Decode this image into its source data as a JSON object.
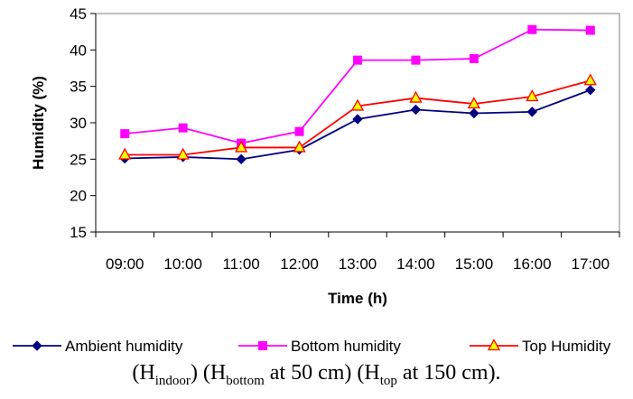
{
  "chart_data": {
    "type": "line",
    "categories": [
      "09:00",
      "10:00",
      "11:00",
      "12:00",
      "13:00",
      "14:00",
      "15:00",
      "16:00",
      "17:00"
    ],
    "xlabel": "Time (h)",
    "ylabel": "Humidity (%)",
    "ylim": [
      15,
      45
    ],
    "yticks": [
      15,
      20,
      25,
      30,
      35,
      40,
      45
    ],
    "grid": false,
    "legend_position": "bottom",
    "series": [
      {
        "name": "Ambient humidity",
        "color": "#000080",
        "marker": "diamond",
        "values": [
          25.1,
          25.3,
          25.0,
          26.3,
          30.5,
          31.8,
          31.3,
          31.5,
          34.5
        ]
      },
      {
        "name": "Bottom humidity",
        "color": "#FF00FF",
        "marker": "square",
        "values": [
          28.5,
          29.3,
          27.2,
          28.8,
          38.6,
          38.6,
          38.8,
          42.8,
          42.7
        ]
      },
      {
        "name": "Top Humidity",
        "color": "#FF0000",
        "marker_fill": "#FFFF00",
        "marker": "triangle",
        "values": [
          25.6,
          25.6,
          26.6,
          26.6,
          32.3,
          33.4,
          32.6,
          33.6,
          35.8
        ]
      }
    ]
  },
  "caption": {
    "h_indoor_base": "H",
    "h_indoor_sub": "indoor",
    "h_bottom_base": "H",
    "h_bottom_sub": "bottom",
    "h_bottom_tail": " at 50 cm",
    "h_top_base": "H",
    "h_top_sub": "top",
    "h_top_tail": " at 150 cm"
  }
}
